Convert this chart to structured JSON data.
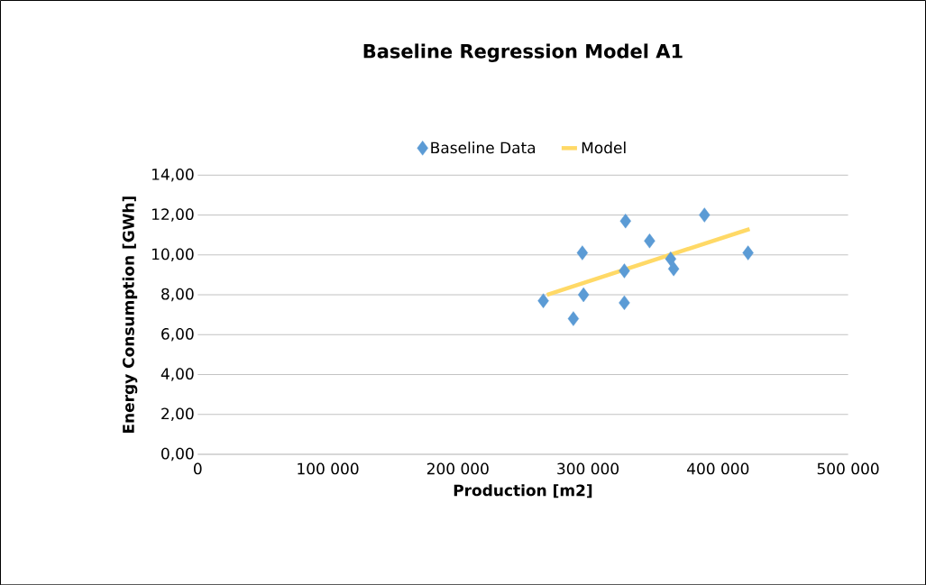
{
  "chart_data": {
    "type": "scatter",
    "title": "Baseline Regression Model A1",
    "xlabel": "Production [m2]",
    "ylabel": "Energy Consumption [GWh]",
    "xlim": [
      0,
      500000
    ],
    "ylim": [
      0,
      14
    ],
    "xticks": [
      {
        "value": 0,
        "label": "0"
      },
      {
        "value": 100000,
        "label": "100 000"
      },
      {
        "value": 200000,
        "label": "200 000"
      },
      {
        "value": 300000,
        "label": "300 000"
      },
      {
        "value": 400000,
        "label": "400 000"
      },
      {
        "value": 500000,
        "label": "500 000"
      }
    ],
    "yticks": [
      {
        "value": 0,
        "label": "0,00"
      },
      {
        "value": 2,
        "label": "2,00"
      },
      {
        "value": 4,
        "label": "4,00"
      },
      {
        "value": 6,
        "label": "6,00"
      },
      {
        "value": 8,
        "label": "8,00"
      },
      {
        "value": 10,
        "label": "10,00"
      },
      {
        "value": 12,
        "label": "12,00"
      },
      {
        "value": 14,
        "label": "14,00"
      }
    ],
    "grid": "y",
    "legend": "top",
    "series": [
      {
        "name": "Baseline Data",
        "color": "#5b9bd5",
        "marker": "diamond",
        "x": [
          265700,
          288800,
          295700,
          296600,
          328900,
          328000,
          328000,
          347400,
          363600,
          365900,
          389600,
          423100
        ],
        "values": [
          7.7,
          6.8,
          10.1,
          8.0,
          11.7,
          9.2,
          7.6,
          10.7,
          9.8,
          9.3,
          12.0,
          10.1
        ]
      },
      {
        "name": "Model",
        "type": "line",
        "color": "#ffd966",
        "marker": "none",
        "x": [
          268500,
          424300
        ],
        "values": [
          8.0,
          11.3
        ]
      }
    ]
  }
}
